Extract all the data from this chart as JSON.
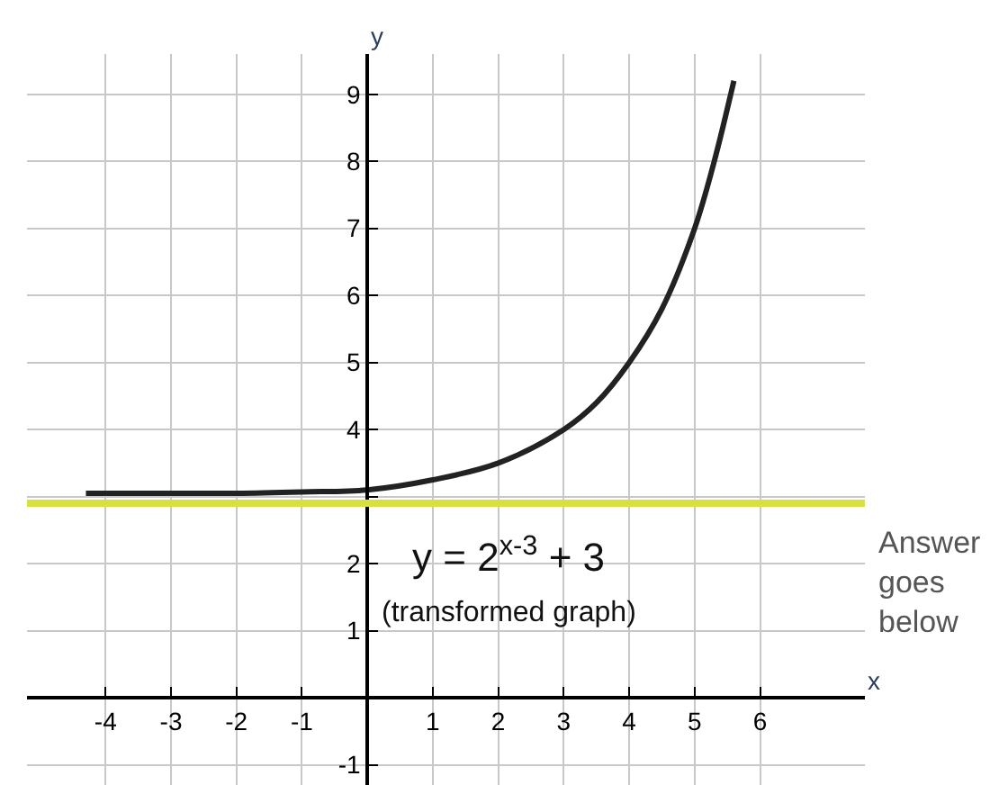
{
  "chart_data": {
    "type": "line",
    "xlabel": "x",
    "ylabel": "y",
    "series": [
      {
        "color": "#222222",
        "x": [
          -4.3,
          -3,
          -2,
          -1,
          0,
          1,
          2,
          3,
          3.5,
          4,
          4.5,
          5,
          5.3,
          5.6
        ],
        "values": [
          3.05,
          3.05,
          3.05,
          3.07,
          3.1,
          3.25,
          3.5,
          4.0,
          4.4,
          5.0,
          5.8,
          7.0,
          8.0,
          9.2
        ]
      }
    ],
    "ref_lines": [
      {
        "axis": "y",
        "value": 2.9,
        "color": "#d8e040"
      }
    ],
    "annotations": [
      "y = 2$^{x-3}$ + 3",
      "(transformed graph)",
      "Answer goes below"
    ],
    "xlim": [
      -5.2,
      7.6
    ],
    "ylim": [
      -1.3,
      9.6
    ],
    "xticks": [
      -4,
      -3,
      -2,
      -1,
      {
        "value": 0,
        "label": null
      },
      1,
      2,
      3,
      4,
      5,
      6
    ],
    "yticks": [
      -1,
      {
        "value": 0,
        "label": null
      },
      1,
      2,
      {
        "value": 3,
        "label": null
      },
      4,
      5,
      6,
      7,
      8,
      9
    ],
    "grid": true,
    "marker": "none",
    "line_style": "solid"
  }
}
